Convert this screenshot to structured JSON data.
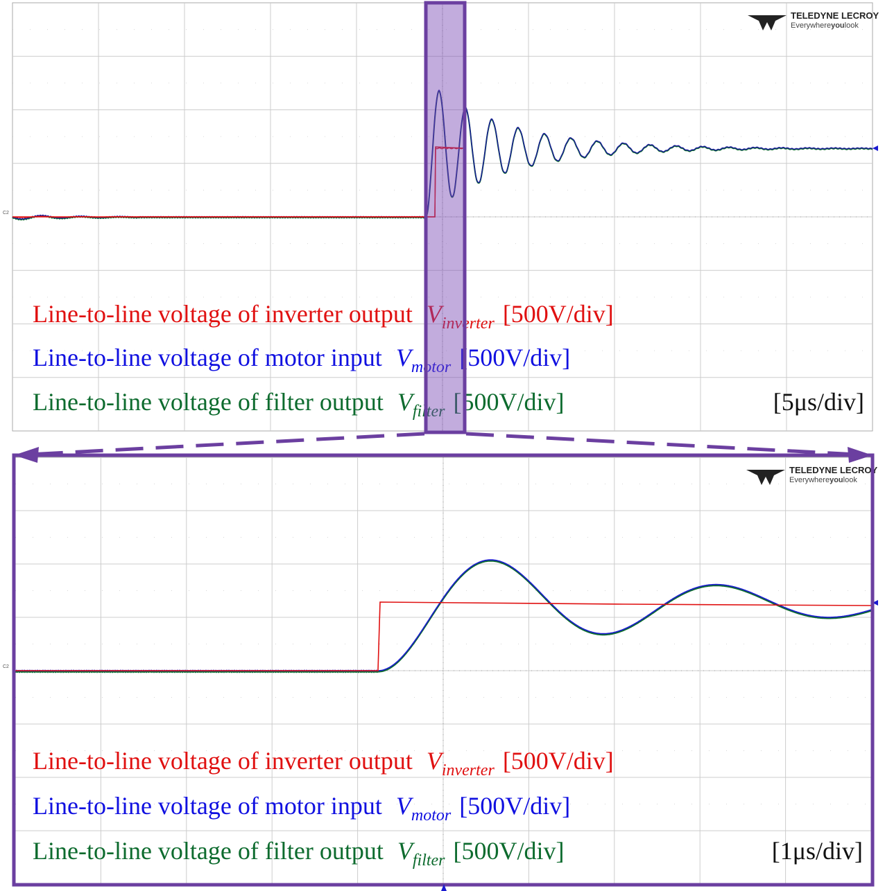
{
  "panels": [
    {
      "logo": {
        "brand": "TELEDYNE LECROY",
        "tagline": [
          "Everywhere",
          "you",
          "look"
        ]
      },
      "channel_marker": "C2",
      "legend": [
        {
          "text": "Line-to-line voltage of inverter output",
          "symbol": "V",
          "subscript": "inverter",
          "scale": "[500V/div]"
        },
        {
          "text": "Line-to-line voltage of motor input",
          "symbol": "V",
          "subscript": "motor",
          "scale": "[500V/div]"
        },
        {
          "text": "Line-to-line voltage of filter output",
          "symbol": "V",
          "subscript": "filter",
          "scale": "[500V/div]"
        }
      ],
      "timebase": "[5μs/div]"
    },
    {
      "logo": {
        "brand": "TELEDYNE LECROY",
        "tagline": [
          "Everywhere",
          "you",
          "look"
        ]
      },
      "channel_marker": "C2",
      "legend": [
        {
          "text": "Line-to-line voltage of inverter output",
          "symbol": "V",
          "subscript": "inverter",
          "scale": "[500V/div]"
        },
        {
          "text": "Line-to-line voltage of motor input",
          "symbol": "V",
          "subscript": "motor",
          "scale": "[500V/div]"
        },
        {
          "text": "Line-to-line voltage of filter output",
          "symbol": "V",
          "subscript": "filter",
          "scale": "[500V/div]"
        }
      ],
      "timebase": "[1μs/div]"
    }
  ]
}
